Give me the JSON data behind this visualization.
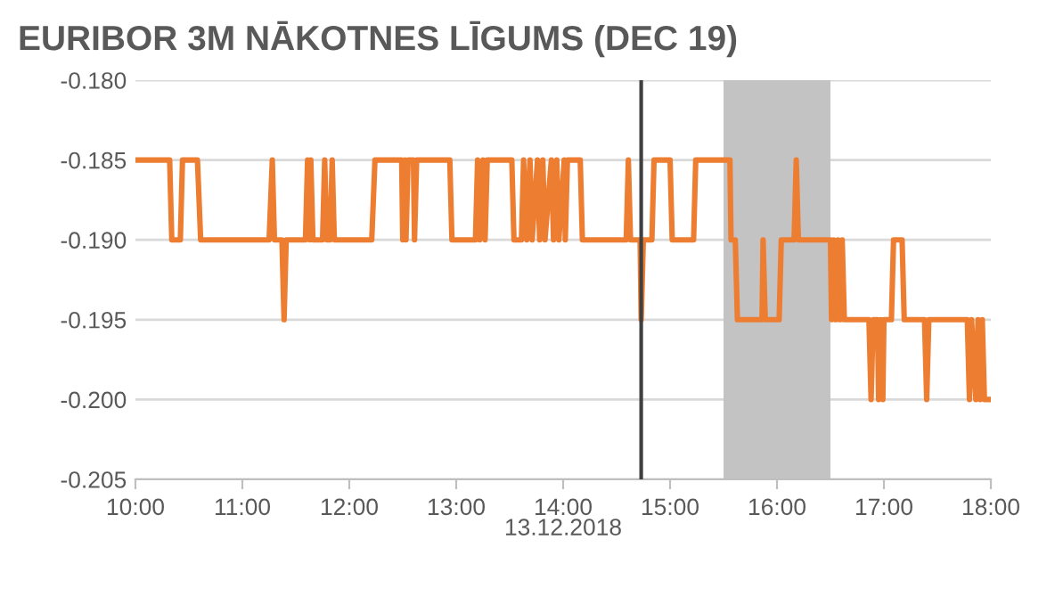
{
  "chart_data": {
    "type": "line",
    "title": "EURIBOR 3M NĀKOTNES LĪGUMS (DEC 19)",
    "x": [
      10.0,
      10.32,
      10.34,
      10.42,
      10.44,
      10.58,
      10.61,
      11.25,
      11.28,
      11.3,
      11.37,
      11.39,
      11.41,
      11.59,
      11.61,
      11.63,
      11.64,
      11.66,
      11.75,
      11.77,
      11.79,
      11.82,
      11.84,
      11.86,
      12.21,
      12.24,
      12.49,
      12.5,
      12.52,
      12.53,
      12.55,
      12.6,
      12.61,
      12.63,
      12.94,
      12.96,
      13.18,
      13.2,
      13.22,
      13.25,
      13.27,
      13.29,
      13.52,
      13.54,
      13.61,
      13.63,
      13.66,
      13.69,
      13.71,
      13.76,
      13.78,
      13.81,
      13.83,
      13.89,
      13.91,
      13.94,
      13.96,
      14.01,
      14.02,
      14.04,
      14.16,
      14.18,
      14.59,
      14.61,
      14.63,
      14.72,
      14.73,
      14.75,
      14.83,
      14.85,
      15.0,
      15.02,
      15.22,
      15.24,
      15.56,
      15.57,
      15.61,
      15.63,
      15.86,
      15.87,
      15.89,
      16.02,
      16.04,
      16.16,
      16.18,
      16.2,
      16.5,
      16.51,
      16.53,
      16.55,
      16.57,
      16.59,
      16.61,
      16.63,
      16.86,
      16.88,
      16.9,
      16.94,
      16.95,
      16.97,
      16.99,
      17.0,
      17.07,
      17.09,
      17.17,
      17.19,
      17.38,
      17.4,
      17.42,
      17.78,
      17.8,
      17.82,
      17.86,
      17.88,
      17.9,
      17.92,
      17.94,
      18.0
    ],
    "series": [
      {
        "color": "#ed7d31",
        "values": [
          -0.185,
          -0.185,
          -0.19,
          -0.19,
          -0.185,
          -0.185,
          -0.19,
          -0.19,
          -0.185,
          -0.19,
          -0.19,
          -0.195,
          -0.19,
          -0.19,
          -0.185,
          -0.19,
          -0.185,
          -0.19,
          -0.19,
          -0.185,
          -0.19,
          -0.19,
          -0.185,
          -0.19,
          -0.19,
          -0.185,
          -0.185,
          -0.19,
          -0.185,
          -0.19,
          -0.185,
          -0.185,
          -0.19,
          -0.185,
          -0.185,
          -0.19,
          -0.19,
          -0.185,
          -0.19,
          -0.185,
          -0.19,
          -0.185,
          -0.185,
          -0.19,
          -0.19,
          -0.185,
          -0.19,
          -0.185,
          -0.19,
          -0.185,
          -0.19,
          -0.185,
          -0.19,
          -0.185,
          -0.19,
          -0.185,
          -0.19,
          -0.185,
          -0.19,
          -0.185,
          -0.185,
          -0.19,
          -0.19,
          -0.185,
          -0.19,
          -0.19,
          -0.195,
          -0.19,
          -0.19,
          -0.185,
          -0.185,
          -0.19,
          -0.19,
          -0.185,
          -0.185,
          -0.19,
          -0.19,
          -0.195,
          -0.195,
          -0.19,
          -0.195,
          -0.195,
          -0.19,
          -0.19,
          -0.185,
          -0.19,
          -0.19,
          -0.195,
          -0.19,
          -0.195,
          -0.19,
          -0.195,
          -0.19,
          -0.195,
          -0.195,
          -0.2,
          -0.195,
          -0.195,
          -0.2,
          -0.195,
          -0.2,
          -0.195,
          -0.195,
          -0.19,
          -0.19,
          -0.195,
          -0.195,
          -0.2,
          -0.195,
          -0.195,
          -0.2,
          -0.195,
          -0.2,
          -0.195,
          -0.2,
          -0.195,
          -0.2,
          -0.2
        ]
      }
    ],
    "xlim": [
      10,
      18
    ],
    "xticks": [
      {
        "value": 10,
        "label": "10:00"
      },
      {
        "value": 11,
        "label": "11:00"
      },
      {
        "value": 12,
        "label": "12:00"
      },
      {
        "value": 13,
        "label": "13:00"
      },
      {
        "value": 14,
        "label": "14:00\n13.12.2018"
      },
      {
        "value": 15,
        "label": "15:00"
      },
      {
        "value": 16,
        "label": "16:00"
      },
      {
        "value": 17,
        "label": "17:00"
      },
      {
        "value": 18,
        "label": "18:00"
      }
    ],
    "ylim": [
      -0.205,
      -0.18
    ],
    "yticks": [
      {
        "value": -0.205,
        "label": "-0.205"
      },
      {
        "value": -0.2,
        "label": "-0.200"
      },
      {
        "value": -0.195,
        "label": "-0.195"
      },
      {
        "value": -0.19,
        "label": "-0.190"
      },
      {
        "value": -0.185,
        "label": "-0.185"
      },
      {
        "value": -0.18,
        "label": "-0.180"
      }
    ],
    "grid": "y",
    "marker": "none",
    "line_style": "solid",
    "ref_lines": [
      {
        "axis": "x",
        "value": 14.73,
        "color": "#404040"
      }
    ],
    "bands": [
      {
        "axis": "x",
        "from": 15.5,
        "to": 16.5,
        "color": "#c3c3c3"
      }
    ]
  }
}
